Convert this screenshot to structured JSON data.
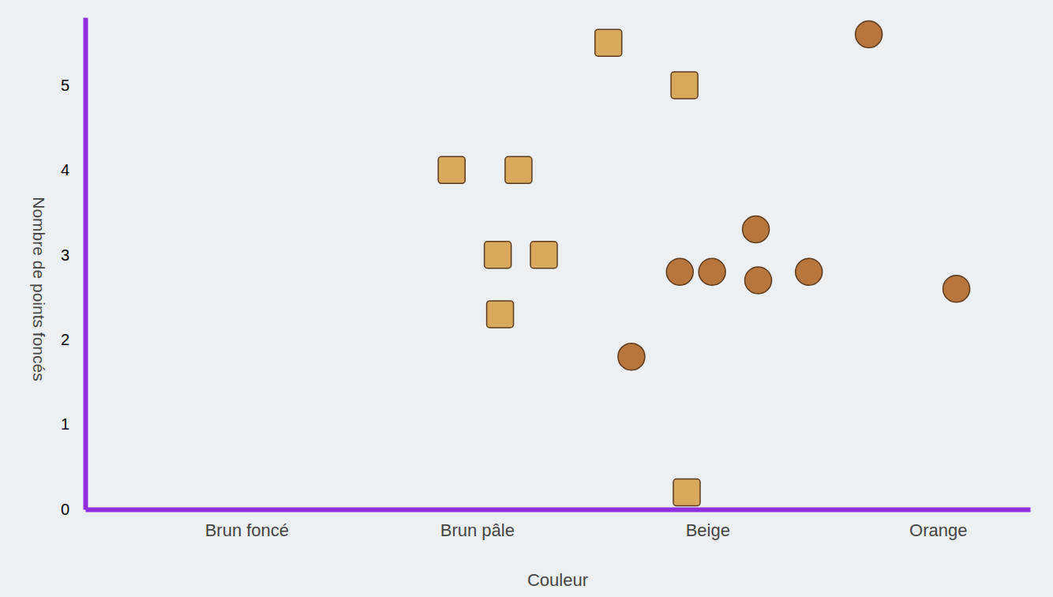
{
  "chart_data": {
    "type": "scatter",
    "x_label": "Couleur",
    "y_label": "Nombre de points foncés",
    "xlim": [
      0.3,
      4.4
    ],
    "xticks": [
      {
        "value": 1,
        "label": "Brun foncé"
      },
      {
        "value": 2,
        "label": "Brun pâle"
      },
      {
        "value": 3,
        "label": "Beige"
      },
      {
        "value": 4,
        "label": "Orange"
      }
    ],
    "ylim": [
      0,
      5.8
    ],
    "yticks": [
      0,
      1,
      2,
      3,
      4,
      5
    ],
    "grid": false,
    "series": [
      {
        "color": "#d9a95b",
        "marker": "square",
        "x": [
          2.57,
          2.9,
          1.89,
          2.18,
          2.09,
          2.29,
          2.1,
          2.91
        ],
        "values": [
          5.5,
          5.0,
          4.0,
          4.0,
          3.0,
          3.0,
          2.3,
          0.2
        ]
      },
      {
        "color": "#b8763c",
        "marker": "circle",
        "x": [
          3.7,
          2.67,
          2.88,
          3.02,
          3.21,
          3.22,
          3.44,
          4.08
        ],
        "values": [
          5.6,
          1.8,
          2.8,
          2.8,
          3.3,
          2.7,
          2.8,
          2.6
        ]
      }
    ]
  }
}
